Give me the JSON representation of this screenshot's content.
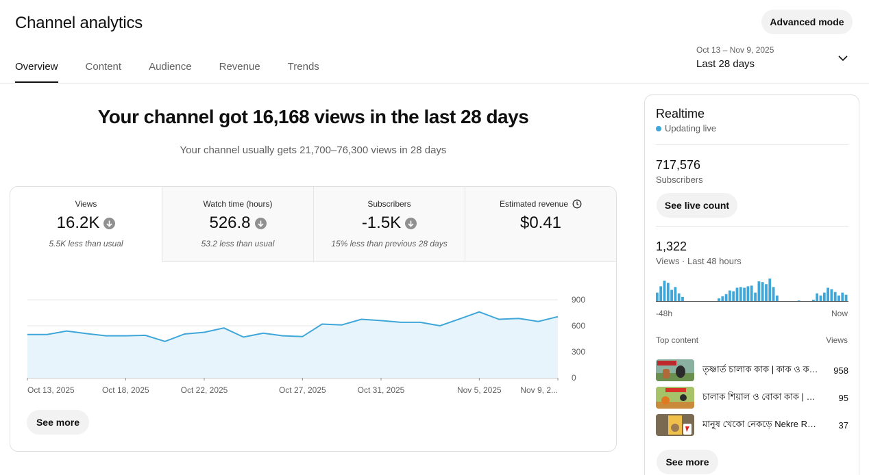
{
  "header": {
    "title": "Channel analytics",
    "advanced_mode": "Advanced mode",
    "tabs": [
      {
        "label": "Overview",
        "active": true
      },
      {
        "label": "Content",
        "active": false
      },
      {
        "label": "Audience",
        "active": false
      },
      {
        "label": "Revenue",
        "active": false
      },
      {
        "label": "Trends",
        "active": false
      }
    ],
    "date_range": {
      "dates": "Oct 13 – Nov 9, 2025",
      "label": "Last 28 days"
    }
  },
  "main": {
    "headline": "Your channel got 16,168 views in the last 28 days",
    "subline": "Your channel usually gets 21,700–76,300 views in 28 days",
    "metrics": [
      {
        "label": "Views",
        "value": "16.2K",
        "note": "5.5K less than usual",
        "trend": "down"
      },
      {
        "label": "Watch time (hours)",
        "value": "526.8",
        "note": "53.2 less than usual",
        "trend": "down"
      },
      {
        "label": "Subscribers",
        "value": "-1.5K",
        "note": "15% less than previous 28 days",
        "trend": "down"
      },
      {
        "label": "Estimated revenue",
        "value": "$0.41",
        "note": "",
        "trend": "none"
      }
    ],
    "see_more": "See more"
  },
  "chart_data": {
    "type": "area",
    "y_ticks": [
      "900",
      "600",
      "300",
      "0"
    ],
    "ylim": [
      0,
      900
    ],
    "x_tick_labels": [
      {
        "label": "Oct 13, 2025",
        "index": 0
      },
      {
        "label": "Oct 18, 2025",
        "index": 5
      },
      {
        "label": "Oct 22, 2025",
        "index": 9
      },
      {
        "label": "Oct 27, 2025",
        "index": 14
      },
      {
        "label": "Oct 31, 2025",
        "index": 18
      },
      {
        "label": "Nov 5, 2025",
        "index": 23
      },
      {
        "label": "Nov 9, 2...",
        "index": 27
      }
    ],
    "x": [
      "Oct 13",
      "Oct 14",
      "Oct 15",
      "Oct 16",
      "Oct 17",
      "Oct 18",
      "Oct 19",
      "Oct 20",
      "Oct 21",
      "Oct 22",
      "Oct 23",
      "Oct 24",
      "Oct 25",
      "Oct 26",
      "Oct 27",
      "Oct 28",
      "Oct 29",
      "Oct 30",
      "Oct 31",
      "Nov 1",
      "Nov 2",
      "Nov 3",
      "Nov 4",
      "Nov 5",
      "Nov 6",
      "Nov 7",
      "Nov 8",
      "Nov 9"
    ],
    "values": [
      500,
      500,
      540,
      510,
      485,
      485,
      490,
      420,
      505,
      525,
      575,
      470,
      515,
      485,
      475,
      620,
      610,
      675,
      660,
      640,
      640,
      600,
      680,
      760,
      675,
      685,
      650,
      705
    ],
    "color": "#3ea6d8",
    "fill": "#e8f4fb"
  },
  "realtime": {
    "title": "Realtime",
    "status": "Updating live",
    "subscribers_value": "717,576",
    "subscribers_label": "Subscribers",
    "see_live_count": "See live count",
    "views_value": "1,322",
    "views_label": "Views · Last 48 hours",
    "axis_start": "-48h",
    "axis_end": "Now",
    "bars": [
      13,
      22,
      30,
      27,
      17,
      21,
      12,
      7,
      0,
      1,
      1,
      0,
      1,
      0,
      0,
      0,
      1,
      5,
      8,
      11,
      16,
      15,
      20,
      21,
      20,
      22,
      23,
      13,
      29,
      28,
      25,
      33,
      21,
      9,
      1,
      0,
      1,
      0,
      1,
      2,
      1,
      0,
      1,
      3,
      12,
      9,
      13,
      20,
      18,
      14,
      9,
      13,
      10
    ],
    "top_content_label": "Top content",
    "top_content_views_label": "Views",
    "top_content": [
      {
        "title": "তৃষ্ণার্ত চালাক কাক | কাক ও কলসী",
        "views": "958"
      },
      {
        "title": "চালাক শিয়াল ও বোকা কাক | Bangla Cartoon",
        "views": "95"
      },
      {
        "title": "মানুষ খেকো নেকড়ে Nekre Rupkothar Golpo",
        "views": "37"
      }
    ],
    "see_more": "See more"
  }
}
